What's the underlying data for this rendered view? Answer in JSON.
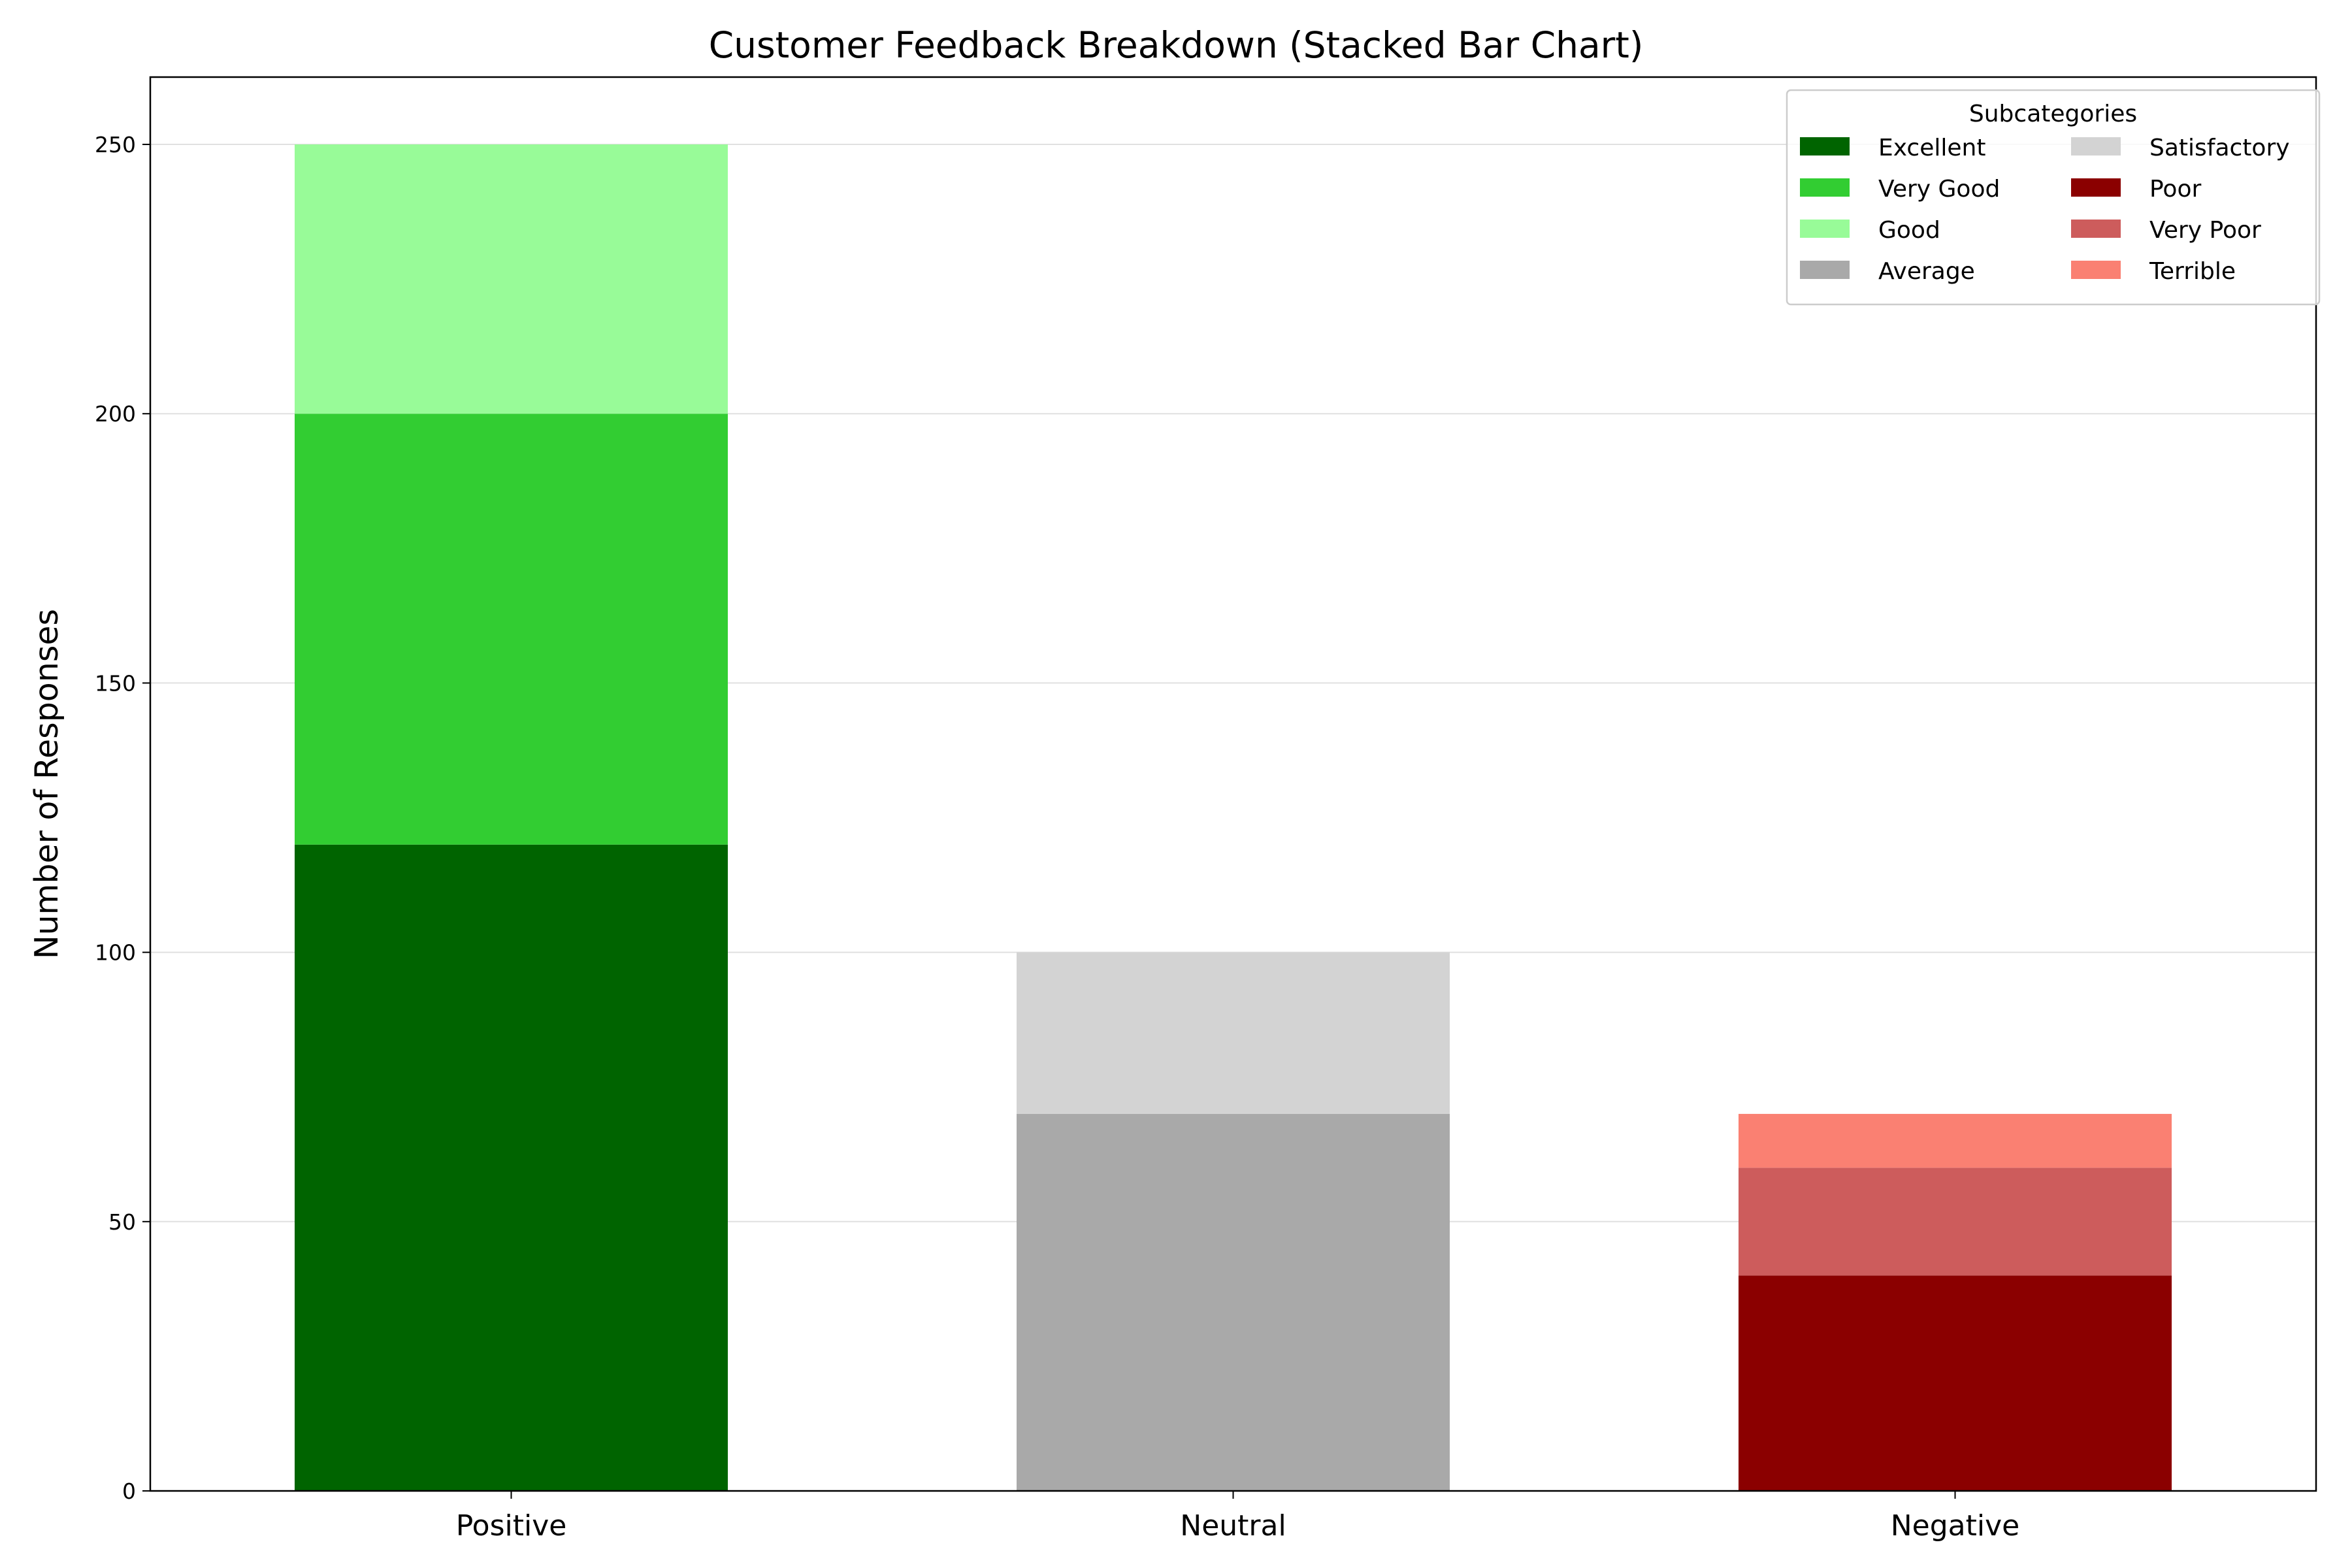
{
  "chart_data": {
    "type": "bar",
    "stacked": true,
    "title": "Customer Feedback Breakdown (Stacked Bar Chart)",
    "xlabel": "",
    "ylabel": "Number of Responses",
    "ylim": [
      0,
      262.5
    ],
    "yticks": [
      0,
      50,
      100,
      150,
      200,
      250
    ],
    "grid": "y",
    "categories": [
      "Positive",
      "Neutral",
      "Negative"
    ],
    "series": [
      {
        "name": "Excellent",
        "color": "#006400",
        "values": [
          120,
          0,
          0
        ]
      },
      {
        "name": "Very Good",
        "color": "#32CD32",
        "values": [
          80,
          0,
          0
        ]
      },
      {
        "name": "Good",
        "color": "#98FB98",
        "values": [
          50,
          0,
          0
        ]
      },
      {
        "name": "Average",
        "color": "#A9A9A9",
        "values": [
          0,
          70,
          0
        ]
      },
      {
        "name": "Satisfactory",
        "color": "#D3D3D3",
        "values": [
          0,
          30,
          0
        ]
      },
      {
        "name": "Poor",
        "color": "#8B0000",
        "values": [
          0,
          0,
          40
        ]
      },
      {
        "name": "Very Poor",
        "color": "#CD5C5C",
        "values": [
          0,
          0,
          20
        ]
      },
      {
        "name": "Terrible",
        "color": "#FA8072",
        "values": [
          0,
          0,
          10
        ]
      }
    ],
    "legend": {
      "title": "Subcategories",
      "placement": "top-right",
      "columns": 2
    }
  }
}
